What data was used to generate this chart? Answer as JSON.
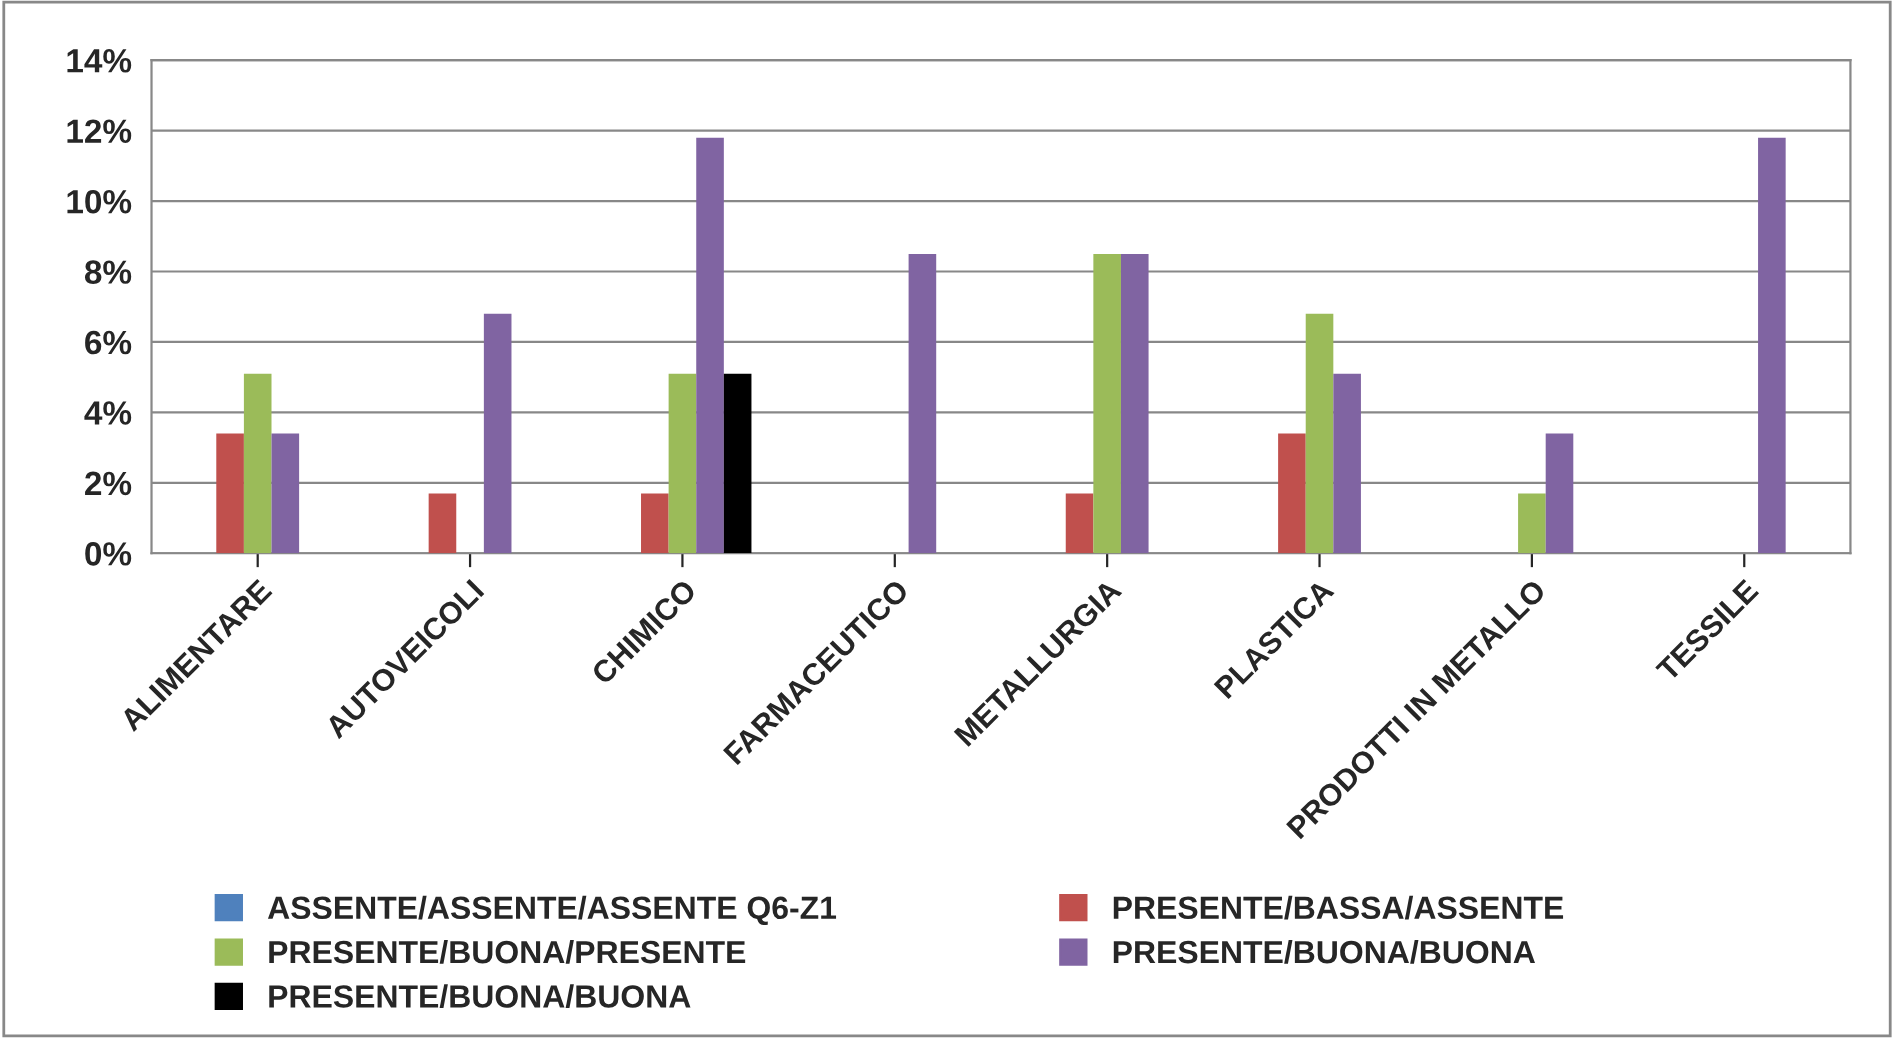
{
  "chart_data": {
    "type": "bar",
    "categories": [
      "ALIMENTARE",
      "AUTOVEICOLI",
      "CHIMICO",
      "FARMACEUTICO",
      "METALLURGIA",
      "PLASTICA",
      "PRODOTTI IN METALLO",
      "TESSILE"
    ],
    "series": [
      {
        "name": "ASSENTE/ASSENTE/ASSENTE Q6-Z1",
        "color": "#4f81bd",
        "values": [
          null,
          null,
          null,
          null,
          null,
          null,
          null,
          null
        ]
      },
      {
        "name": "PRESENTE/BASSA/ASSENTE",
        "color": "#c0504d",
        "values": [
          3.4,
          1.7,
          1.7,
          null,
          1.7,
          3.4,
          null,
          null
        ]
      },
      {
        "name": "PRESENTE/BUONA/PRESENTE",
        "color": "#9bbb59",
        "values": [
          5.1,
          null,
          5.1,
          null,
          8.5,
          6.8,
          1.7,
          null
        ]
      },
      {
        "name": "PRESENTE/BUONA/BUONA",
        "color": "#8064a2",
        "values": [
          3.4,
          6.8,
          11.8,
          8.5,
          8.5,
          5.1,
          3.4,
          11.8
        ]
      },
      {
        "name": "PRESENTE/BUONA/BUONA",
        "color": "#000000",
        "values": [
          null,
          null,
          5.1,
          null,
          null,
          null,
          null,
          null
        ]
      }
    ],
    "ylim": [
      0,
      14
    ],
    "yticks": [
      {
        "value": 0,
        "label": "0%"
      },
      {
        "value": 2,
        "label": "2%"
      },
      {
        "value": 4,
        "label": "4%"
      },
      {
        "value": 6,
        "label": "6%"
      },
      {
        "value": 8,
        "label": "8%"
      },
      {
        "value": 10,
        "label": "10%"
      },
      {
        "value": 12,
        "label": "12%"
      },
      {
        "value": 14,
        "label": "14%"
      }
    ],
    "grid": "y",
    "legend": "bottom"
  }
}
